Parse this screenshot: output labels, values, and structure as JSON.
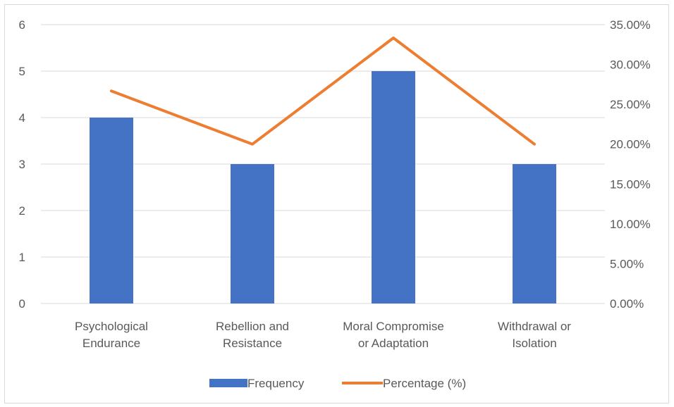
{
  "chart_data": {
    "type": "bar",
    "categories": [
      [
        "Psychological",
        "Endurance"
      ],
      [
        "Rebellion and",
        "Resistance"
      ],
      [
        "Moral Compromise",
        "or Adaptation"
      ],
      [
        "Withdrawal or",
        "Isolation"
      ]
    ],
    "series": [
      {
        "name": "Frequency",
        "type": "bar",
        "axis": "left",
        "color": "#4472C4",
        "values": [
          4,
          3,
          5,
          3
        ]
      },
      {
        "name": "Percentage (%)",
        "type": "line",
        "axis": "right",
        "color": "#ED7D31",
        "values": [
          26.67,
          20.0,
          33.33,
          20.0
        ]
      }
    ],
    "y_left": {
      "min": 0,
      "max": 6,
      "ticks": [
        "0",
        "1",
        "2",
        "3",
        "4",
        "5",
        "6"
      ]
    },
    "y_right": {
      "min": 0,
      "max": 35,
      "ticks": [
        "0.00%",
        "5.00%",
        "10.00%",
        "15.00%",
        "20.00%",
        "25.00%",
        "30.00%",
        "35.00%"
      ]
    },
    "grid": true,
    "legend_position": "bottom"
  }
}
